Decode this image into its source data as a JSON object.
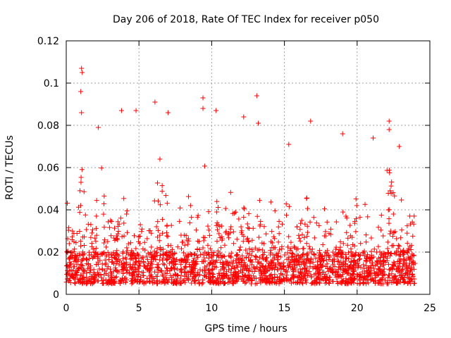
{
  "chart_data": {
    "type": "scatter",
    "title": "Day 206 of 2018, Rate Of TEC Index for receiver p050",
    "xlabel": "GPS time / hours",
    "ylabel": "ROTI / TECUs",
    "xlim": [
      0,
      25
    ],
    "ylim": [
      0,
      0.12
    ],
    "xticks": [
      0,
      5,
      10,
      15,
      20,
      25
    ],
    "xtick_labels": [
      "0",
      "5",
      "10",
      "15",
      "20",
      "25"
    ],
    "yticks": [
      0,
      0.02,
      0.04,
      0.06,
      0.08,
      0.1,
      0.12
    ],
    "ytick_labels": [
      "0",
      "0.02",
      "0.04",
      "0.06",
      "0.08",
      "0.1",
      "0.12"
    ],
    "grid": true,
    "marker": "plus",
    "marker_color": "#ff0000",
    "series": [
      {
        "name": "ROTI",
        "x_range": [
          0,
          24
        ],
        "baseline_range": [
          0.005,
          0.02
        ],
        "notable_points": [
          {
            "x": 1.05,
            "y": 0.107
          },
          {
            "x": 1.1,
            "y": 0.105
          },
          {
            "x": 1.0,
            "y": 0.096
          },
          {
            "x": 1.05,
            "y": 0.086
          },
          {
            "x": 2.2,
            "y": 0.079
          },
          {
            "x": 3.8,
            "y": 0.087
          },
          {
            "x": 4.8,
            "y": 0.087
          },
          {
            "x": 6.1,
            "y": 0.091
          },
          {
            "x": 7.0,
            "y": 0.086
          },
          {
            "x": 9.4,
            "y": 0.093
          },
          {
            "x": 9.4,
            "y": 0.088
          },
          {
            "x": 10.3,
            "y": 0.087
          },
          {
            "x": 12.2,
            "y": 0.084
          },
          {
            "x": 13.1,
            "y": 0.094
          },
          {
            "x": 13.2,
            "y": 0.081
          },
          {
            "x": 15.3,
            "y": 0.071
          },
          {
            "x": 16.8,
            "y": 0.082
          },
          {
            "x": 19.0,
            "y": 0.076
          },
          {
            "x": 21.1,
            "y": 0.074
          },
          {
            "x": 22.2,
            "y": 0.082
          },
          {
            "x": 22.2,
            "y": 0.078
          },
          {
            "x": 22.9,
            "y": 0.07
          }
        ],
        "activity_bands": [
          {
            "center": 1.1,
            "width": 0.5,
            "peak": 0.06
          },
          {
            "center": 2.6,
            "width": 1.2,
            "peak": 0.05
          },
          {
            "center": 3.9,
            "width": 1.0,
            "peak": 0.05
          },
          {
            "center": 6.4,
            "width": 1.2,
            "peak": 0.05
          },
          {
            "center": 9.5,
            "width": 0.8,
            "peak": 0.05
          },
          {
            "center": 12.3,
            "width": 0.5,
            "peak": 0.045
          },
          {
            "center": 13.2,
            "width": 0.6,
            "peak": 0.045
          },
          {
            "center": 16.5,
            "width": 1.0,
            "peak": 0.04
          },
          {
            "center": 19.2,
            "width": 0.6,
            "peak": 0.05
          },
          {
            "center": 22.2,
            "width": 1.2,
            "peak": 0.055
          }
        ]
      }
    ]
  }
}
